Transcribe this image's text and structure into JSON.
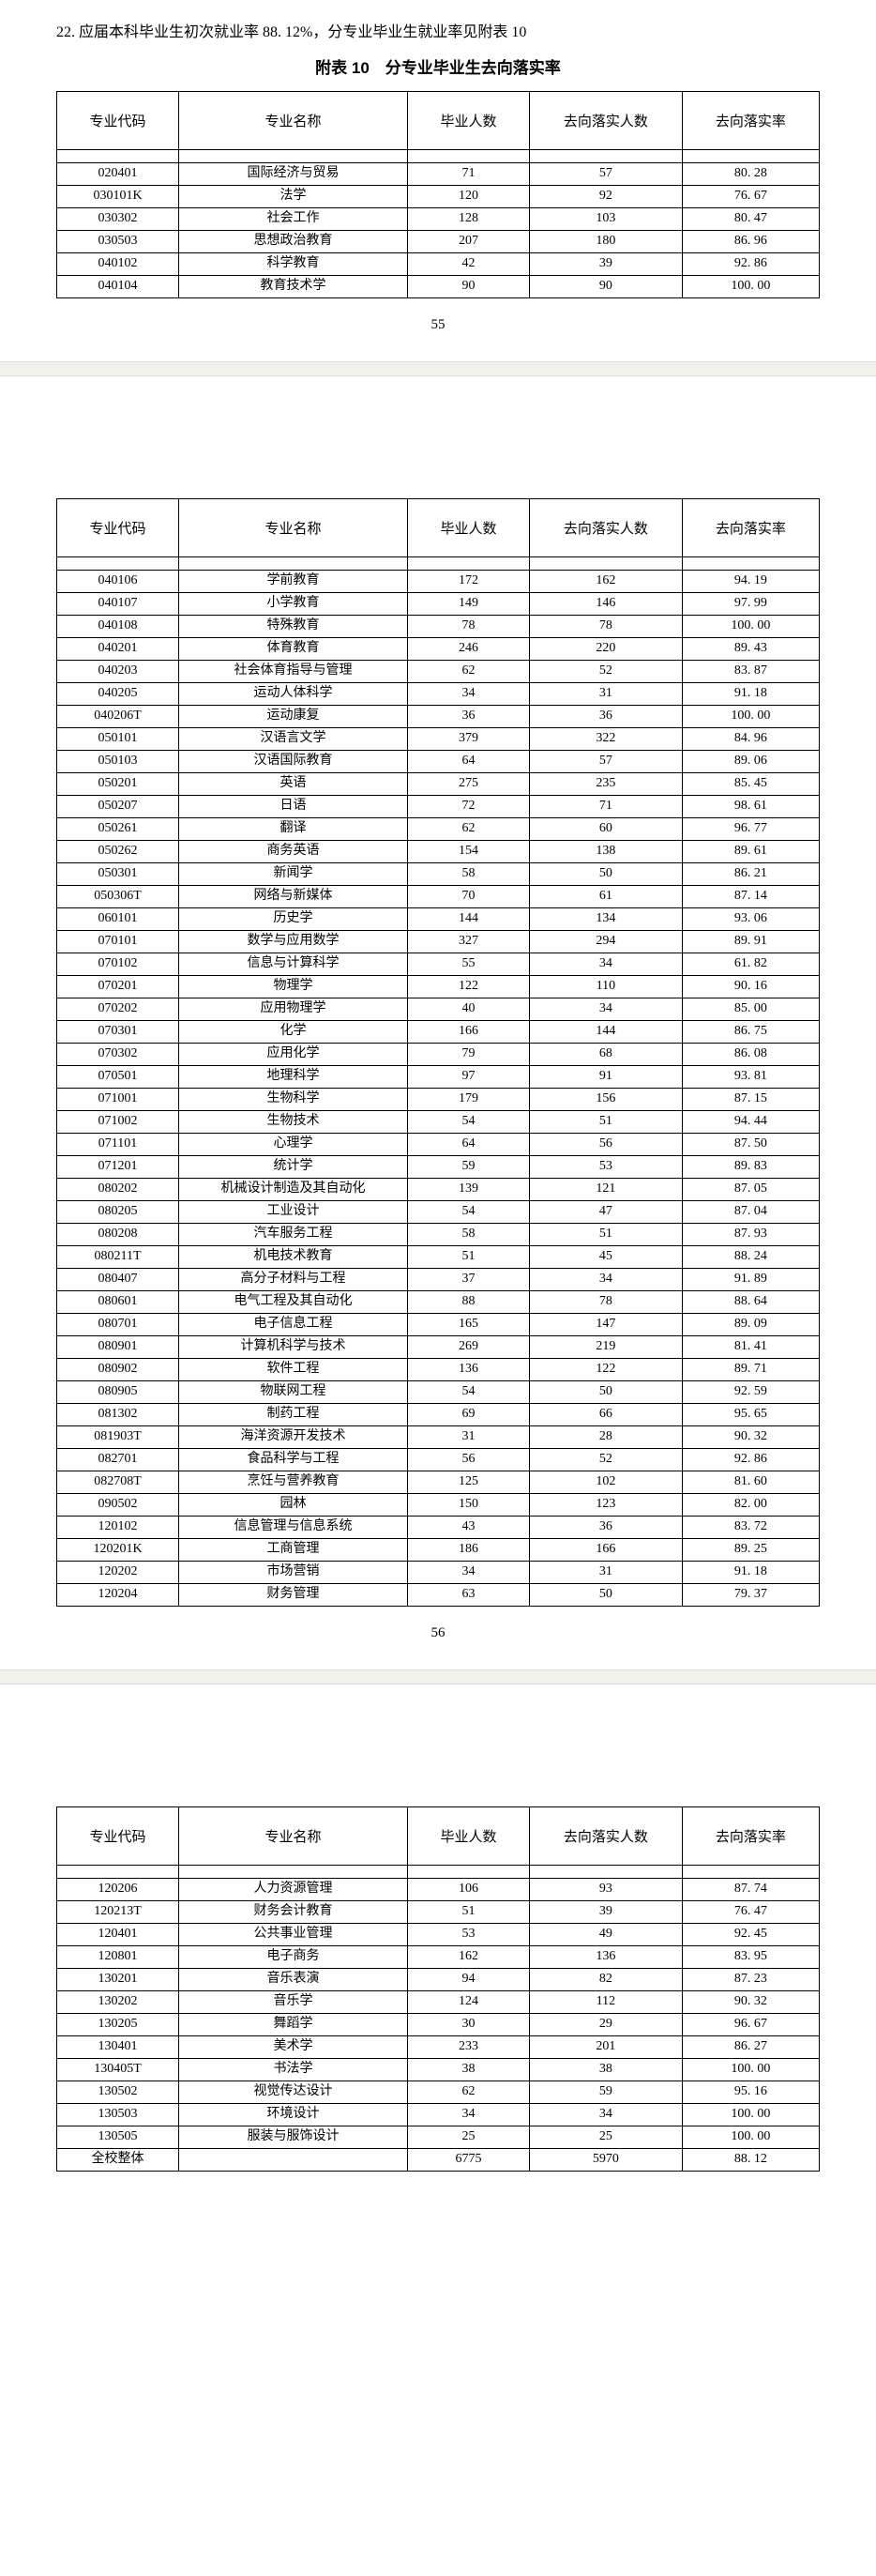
{
  "intro": "22. 应届本科毕业生初次就业率 88. 12%，分专业毕业生就业率见附表 10",
  "tableTitle": "附表 10　分专业毕业生去向落实率",
  "headers": {
    "code": "专业代码",
    "name": "专业名称",
    "grad": "毕业人数",
    "emp": "去向落实人数",
    "rate": "去向落实率"
  },
  "page55": {
    "num": "55",
    "rows": [
      [
        "020401",
        "国际经济与贸易",
        "71",
        "57",
        "80. 28"
      ],
      [
        "030101K",
        "法学",
        "120",
        "92",
        "76. 67"
      ],
      [
        "030302",
        "社会工作",
        "128",
        "103",
        "80. 47"
      ],
      [
        "030503",
        "思想政治教育",
        "207",
        "180",
        "86. 96"
      ],
      [
        "040102",
        "科学教育",
        "42",
        "39",
        "92. 86"
      ],
      [
        "040104",
        "教育技术学",
        "90",
        "90",
        "100. 00"
      ]
    ]
  },
  "page56": {
    "num": "56",
    "rows": [
      [
        "040106",
        "学前教育",
        "172",
        "162",
        "94. 19"
      ],
      [
        "040107",
        "小学教育",
        "149",
        "146",
        "97. 99"
      ],
      [
        "040108",
        "特殊教育",
        "78",
        "78",
        "100. 00"
      ],
      [
        "040201",
        "体育教育",
        "246",
        "220",
        "89. 43"
      ],
      [
        "040203",
        "社会体育指导与管理",
        "62",
        "52",
        "83. 87"
      ],
      [
        "040205",
        "运动人体科学",
        "34",
        "31",
        "91. 18"
      ],
      [
        "040206T",
        "运动康复",
        "36",
        "36",
        "100. 00"
      ],
      [
        "050101",
        "汉语言文学",
        "379",
        "322",
        "84. 96"
      ],
      [
        "050103",
        "汉语国际教育",
        "64",
        "57",
        "89. 06"
      ],
      [
        "050201",
        "英语",
        "275",
        "235",
        "85. 45"
      ],
      [
        "050207",
        "日语",
        "72",
        "71",
        "98. 61"
      ],
      [
        "050261",
        "翻译",
        "62",
        "60",
        "96. 77"
      ],
      [
        "050262",
        "商务英语",
        "154",
        "138",
        "89. 61"
      ],
      [
        "050301",
        "新闻学",
        "58",
        "50",
        "86. 21"
      ],
      [
        "050306T",
        "网络与新媒体",
        "70",
        "61",
        "87. 14"
      ],
      [
        "060101",
        "历史学",
        "144",
        "134",
        "93. 06"
      ],
      [
        "070101",
        "数学与应用数学",
        "327",
        "294",
        "89. 91"
      ],
      [
        "070102",
        "信息与计算科学",
        "55",
        "34",
        "61. 82"
      ],
      [
        "070201",
        "物理学",
        "122",
        "110",
        "90. 16"
      ],
      [
        "070202",
        "应用物理学",
        "40",
        "34",
        "85. 00"
      ],
      [
        "070301",
        "化学",
        "166",
        "144",
        "86. 75"
      ],
      [
        "070302",
        "应用化学",
        "79",
        "68",
        "86. 08"
      ],
      [
        "070501",
        "地理科学",
        "97",
        "91",
        "93. 81"
      ],
      [
        "071001",
        "生物科学",
        "179",
        "156",
        "87. 15"
      ],
      [
        "071002",
        "生物技术",
        "54",
        "51",
        "94. 44"
      ],
      [
        "071101",
        "心理学",
        "64",
        "56",
        "87. 50"
      ],
      [
        "071201",
        "统计学",
        "59",
        "53",
        "89. 83"
      ],
      [
        "080202",
        "机械设计制造及其自动化",
        "139",
        "121",
        "87. 05"
      ],
      [
        "080205",
        "工业设计",
        "54",
        "47",
        "87. 04"
      ],
      [
        "080208",
        "汽车服务工程",
        "58",
        "51",
        "87. 93"
      ],
      [
        "080211T",
        "机电技术教育",
        "51",
        "45",
        "88. 24"
      ],
      [
        "080407",
        "高分子材料与工程",
        "37",
        "34",
        "91. 89"
      ],
      [
        "080601",
        "电气工程及其自动化",
        "88",
        "78",
        "88. 64"
      ],
      [
        "080701",
        "电子信息工程",
        "165",
        "147",
        "89. 09"
      ],
      [
        "080901",
        "计算机科学与技术",
        "269",
        "219",
        "81. 41"
      ],
      [
        "080902",
        "软件工程",
        "136",
        "122",
        "89. 71"
      ],
      [
        "080905",
        "物联网工程",
        "54",
        "50",
        "92. 59"
      ],
      [
        "081302",
        "制药工程",
        "69",
        "66",
        "95. 65"
      ],
      [
        "081903T",
        "海洋资源开发技术",
        "31",
        "28",
        "90. 32"
      ],
      [
        "082701",
        "食品科学与工程",
        "56",
        "52",
        "92. 86"
      ],
      [
        "082708T",
        "烹饪与营养教育",
        "125",
        "102",
        "81. 60"
      ],
      [
        "090502",
        "园林",
        "150",
        "123",
        "82. 00"
      ],
      [
        "120102",
        "信息管理与信息系统",
        "43",
        "36",
        "83. 72"
      ],
      [
        "120201K",
        "工商管理",
        "186",
        "166",
        "89. 25"
      ],
      [
        "120202",
        "市场营销",
        "34",
        "31",
        "91. 18"
      ],
      [
        "120204",
        "财务管理",
        "63",
        "50",
        "79. 37"
      ]
    ]
  },
  "page57": {
    "rows": [
      [
        "120206",
        "人力资源管理",
        "106",
        "93",
        "87. 74"
      ],
      [
        "120213T",
        "财务会计教育",
        "51",
        "39",
        "76. 47"
      ],
      [
        "120401",
        "公共事业管理",
        "53",
        "49",
        "92. 45"
      ],
      [
        "120801",
        "电子商务",
        "162",
        "136",
        "83. 95"
      ],
      [
        "130201",
        "音乐表演",
        "94",
        "82",
        "87. 23"
      ],
      [
        "130202",
        "音乐学",
        "124",
        "112",
        "90. 32"
      ],
      [
        "130205",
        "舞蹈学",
        "30",
        "29",
        "96. 67"
      ],
      [
        "130401",
        "美术学",
        "233",
        "201",
        "86. 27"
      ],
      [
        "130405T",
        "书法学",
        "38",
        "38",
        "100. 00"
      ],
      [
        "130502",
        "视觉传达设计",
        "62",
        "59",
        "95. 16"
      ],
      [
        "130503",
        "环境设计",
        "34",
        "34",
        "100. 00"
      ],
      [
        "130505",
        "服装与服饰设计",
        "25",
        "25",
        "100. 00"
      ],
      [
        "全校整体",
        "",
        "6775",
        "5970",
        "88. 12"
      ]
    ]
  }
}
